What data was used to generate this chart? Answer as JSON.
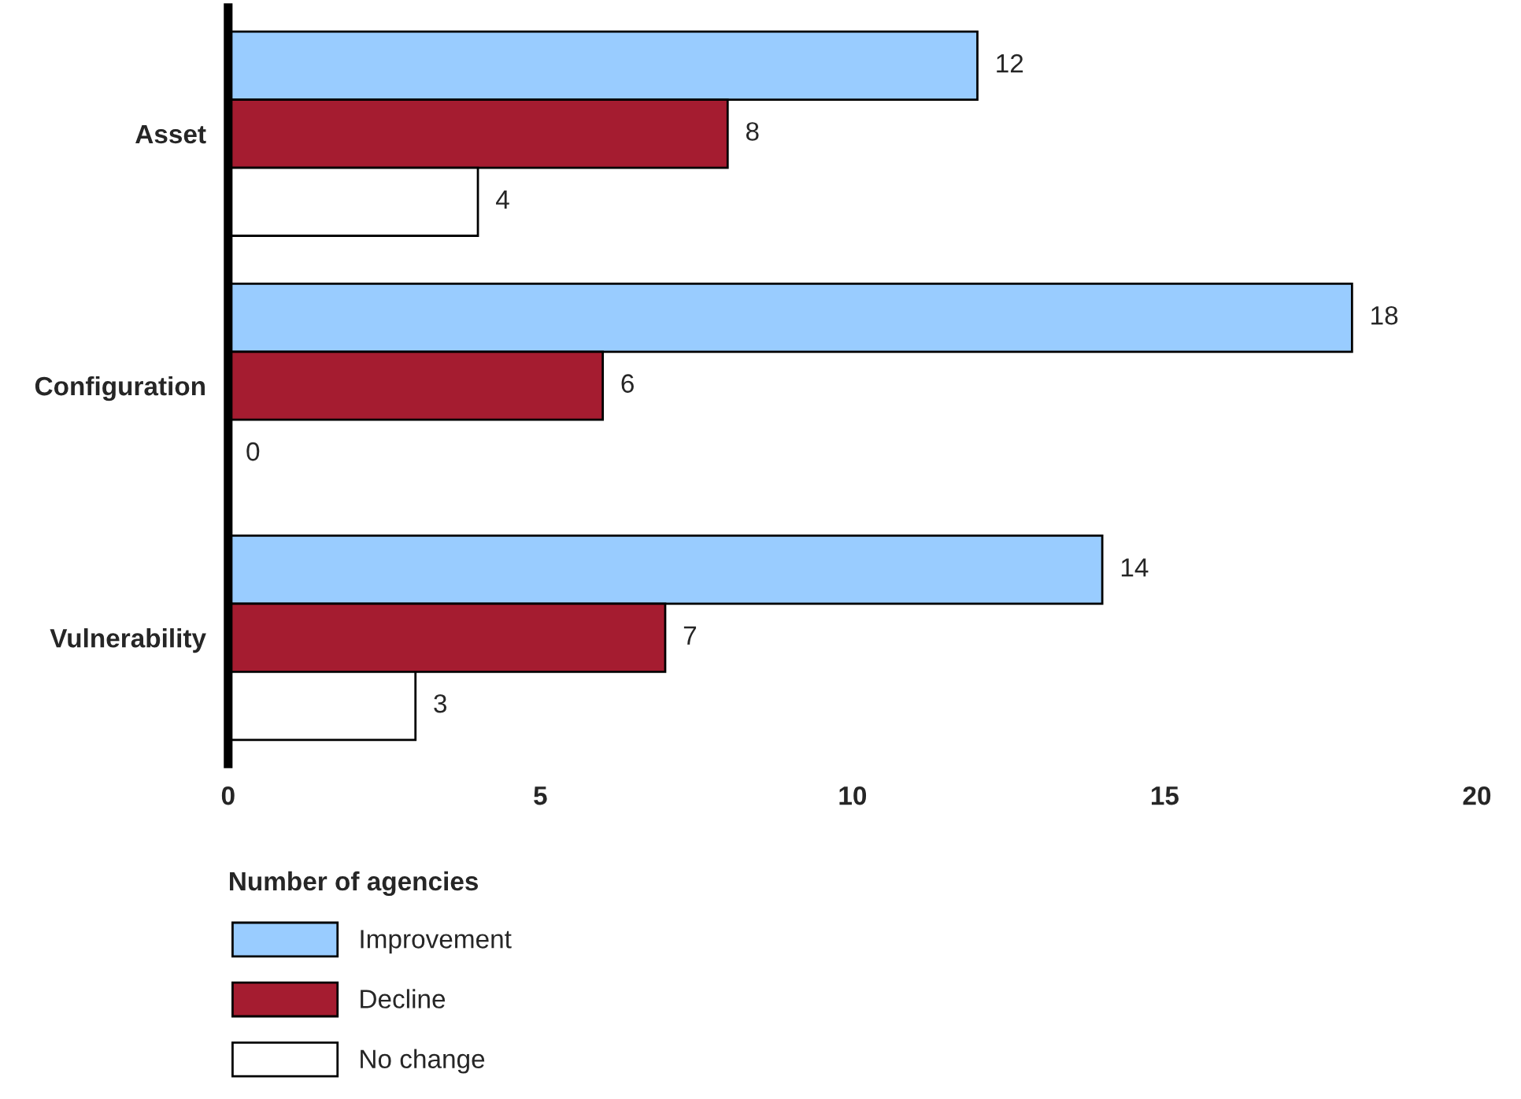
{
  "chart_data": {
    "type": "bar",
    "orientation": "horizontal",
    "xlabel": "Number of agencies",
    "categories": [
      "Asset",
      "Configuration",
      "Vulnerability"
    ],
    "series": [
      {
        "name": "Improvement",
        "color": "#99ccff",
        "values": [
          12,
          18,
          14
        ]
      },
      {
        "name": "Decline",
        "color": "#a51c30",
        "values": [
          8,
          6,
          7
        ]
      },
      {
        "name": "No change",
        "color": "#ffffff",
        "values": [
          4,
          0,
          3
        ]
      }
    ],
    "xlim": [
      0,
      20
    ],
    "xticks": [
      0,
      5,
      10,
      15,
      20
    ],
    "data_labels": true,
    "grid": false,
    "legend": "bottom"
  }
}
